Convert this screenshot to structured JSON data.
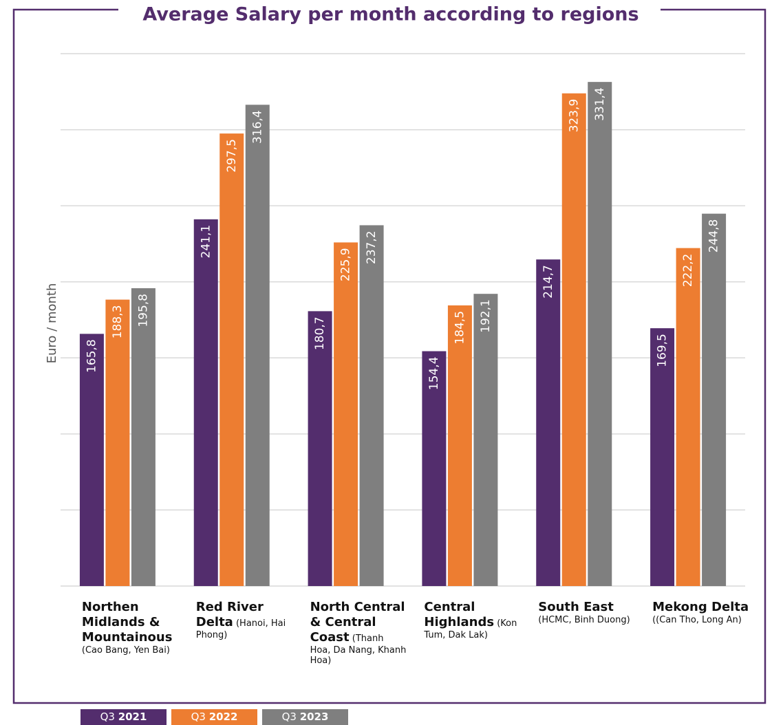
{
  "chart_data": {
    "type": "bar",
    "title": "Average Salary per month according to regions",
    "ylabel": "Euro / month",
    "categories": [
      "Northen Midlands & Mountainous",
      "Red River Delta",
      "North Central & Central Coast",
      "Central Highlands",
      "South East",
      "Mekong Delta"
    ],
    "category_notes": [
      "(Cao Bang, Yen Bai)",
      "(Hanoi, Hai Phong)",
      "(Thanh Hoa, Da Nang, Khanh Hoa)",
      "(Kon Tum, Dak Lak)",
      "(HCMC, Binh Duong)",
      "((Can Tho, Long An)"
    ],
    "series": [
      {
        "name": "Q3 2021",
        "color": "#532d6d",
        "values": [
          165.8,
          241.1,
          180.7,
          154.4,
          214.7,
          169.5
        ],
        "value_labels": [
          "165,8",
          "241,1",
          "180,7",
          "154,4",
          "214,7",
          "169,5"
        ]
      },
      {
        "name": "Q3 2022",
        "color": "#ed7d31",
        "values": [
          188.3,
          297.5,
          225.9,
          184.5,
          323.9,
          222.2
        ],
        "value_labels": [
          "188,3",
          "297,5",
          "225,9",
          "184,5",
          "323,9",
          "222,2"
        ]
      },
      {
        "name": "Q3 2023",
        "color": "#7f7f7f",
        "values": [
          195.8,
          316.4,
          237.2,
          192.1,
          331.4,
          244.8
        ],
        "value_labels": [
          "195,8",
          "316,4",
          "237,2",
          "192,1",
          "331,4",
          "244,8"
        ]
      }
    ],
    "ylim": [
      0,
      350
    ],
    "yticks": [
      0,
      50,
      100,
      150,
      200,
      250,
      300,
      350
    ],
    "grid": true
  }
}
